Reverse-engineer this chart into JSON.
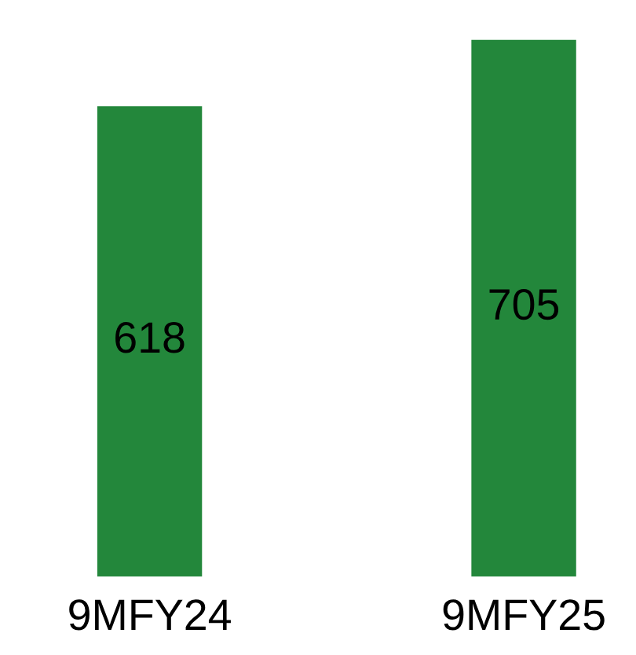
{
  "chart_data": {
    "type": "bar",
    "categories": [
      "9MFY24",
      "9MFY25"
    ],
    "values": [
      618,
      705
    ],
    "color": "#23873b",
    "data_labels": true,
    "grid": false,
    "legend": false
  }
}
